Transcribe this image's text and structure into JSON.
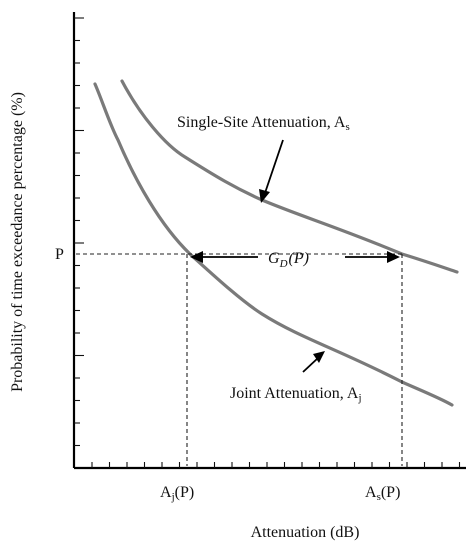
{
  "diagram": {
    "y_axis_label": "Probability of time exceedance percentage (%)",
    "x_axis_label": "Attenuation (dB)",
    "p_label": "P",
    "single_site_label": "Single-Site Attenuation, A",
    "single_site_sub": "s",
    "joint_label": "Joint Attenuation, A",
    "joint_sub": "j",
    "gd_label": {
      "G": "G",
      "sub": "D",
      "arg": "(P)"
    },
    "aj_tick": {
      "main": "A",
      "sub": "j",
      "arg": "(P)"
    },
    "as_tick": {
      "main": "A",
      "sub": "s",
      "arg": "(P)"
    }
  },
  "colors": {
    "curve": "#7a7a7a",
    "axis": "#000000",
    "guide": "#222222",
    "background": "#ffffff"
  }
}
